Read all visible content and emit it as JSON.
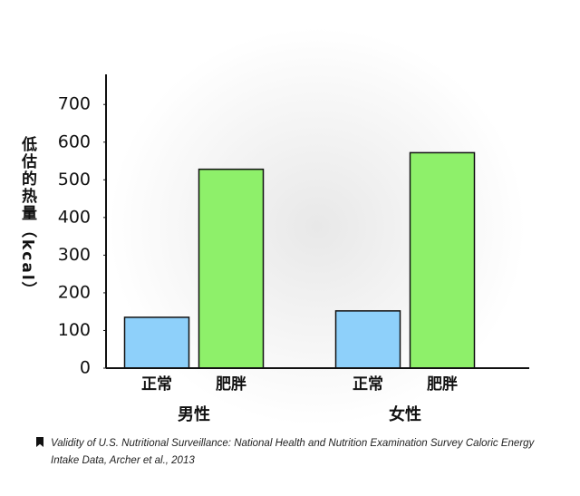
{
  "chart_data": {
    "type": "bar",
    "y_label": "低估的热量（kcal）",
    "categories": [
      "男性",
      "女性"
    ],
    "series": [
      {
        "name": "正常",
        "color": "#8ed0fa",
        "values": [
          135,
          152
        ]
      },
      {
        "name": "肥胖",
        "color": "#8ef06a",
        "values": [
          528,
          572
        ]
      }
    ],
    "ylim": [
      0,
      780
    ],
    "yticks": [
      0,
      100,
      200,
      300,
      400,
      500,
      600,
      700
    ],
    "source": "Validity of U.S. Nutritional Surveillance: National Health and Nutrition Examination Survey Caloric Energy Intake Data, Archer et al., 2013"
  }
}
